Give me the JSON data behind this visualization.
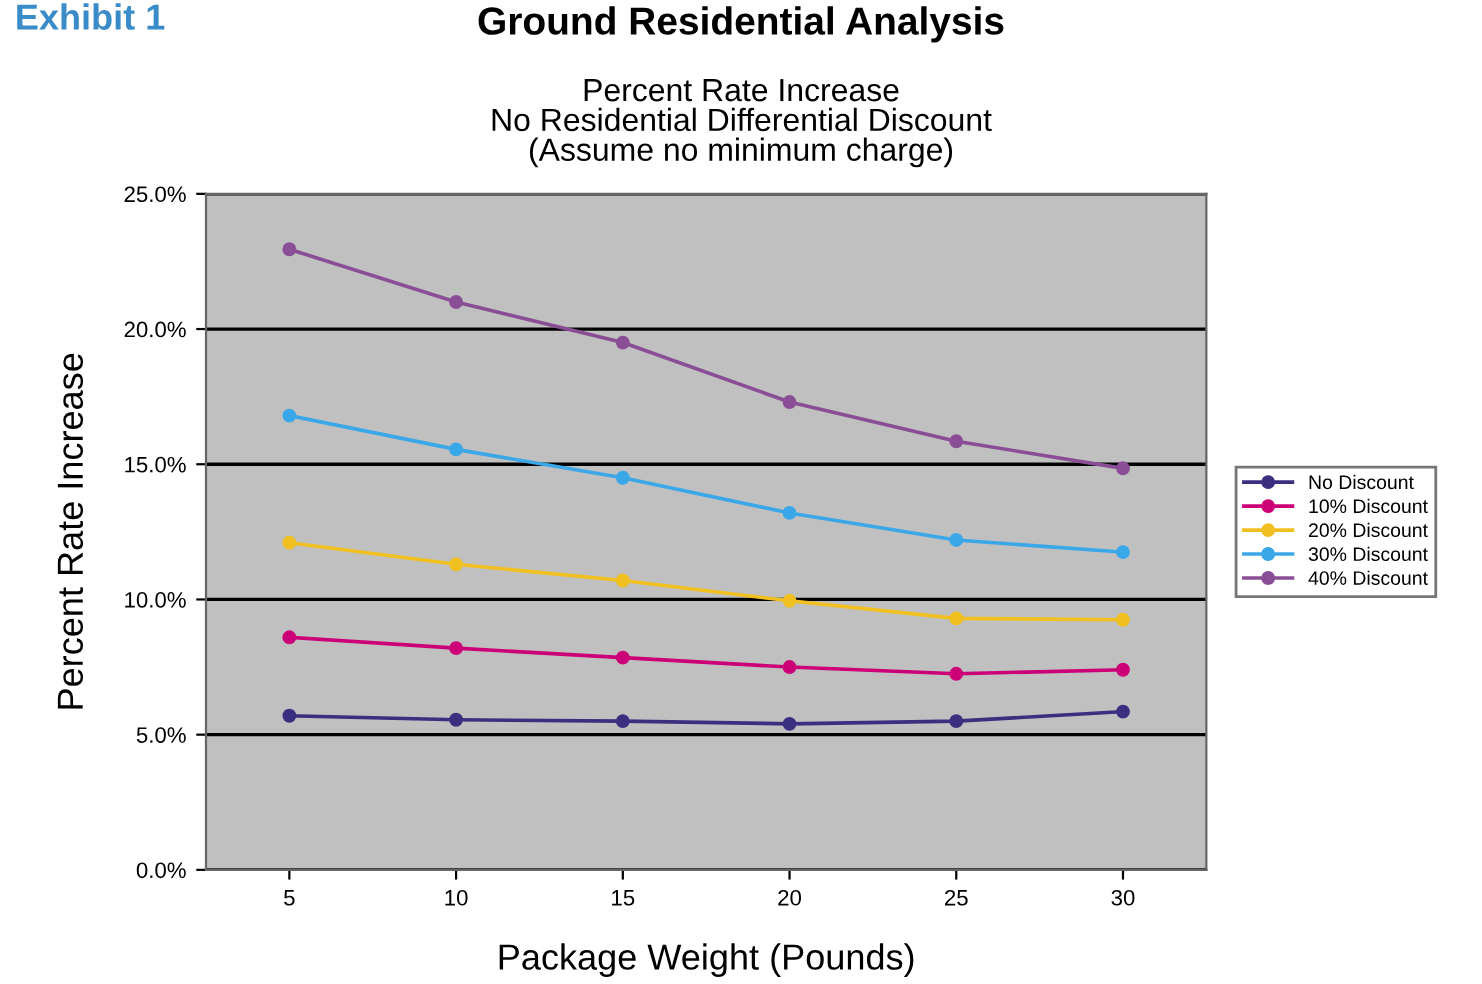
{
  "chart_data": {
    "type": "line",
    "title": "Ground Residential Analysis",
    "subtitle": "Percent Rate Increase\nNo Residential Differential Discount\n(Assume no minimum charge)",
    "xlabel": "Package Weight (Pounds)",
    "ylabel": "Percent Rate Increase",
    "annotations": [
      "Exhibit 1"
    ],
    "categories": [
      "5",
      "10",
      "15",
      "20",
      "25",
      "30"
    ],
    "series": [
      {
        "name": "No Discount",
        "color": "#3b2f80",
        "values": [
          5.7,
          5.55,
          5.5,
          5.4,
          5.5,
          5.85
        ]
      },
      {
        "name": "10% Discount",
        "color": "#cc0077",
        "values": [
          8.6,
          8.2,
          7.85,
          7.5,
          7.25,
          7.4
        ]
      },
      {
        "name": "20% Discount",
        "color": "#f0c020",
        "values": [
          12.1,
          11.3,
          10.7,
          9.95,
          9.3,
          9.25
        ]
      },
      {
        "name": "30% Discount",
        "color": "#3aa8e8",
        "values": [
          16.8,
          15.55,
          14.5,
          13.2,
          12.2,
          11.75
        ]
      },
      {
        "name": "40% Discount",
        "color": "#8a4e96",
        "values": [
          22.95,
          21.0,
          19.5,
          17.3,
          15.85,
          14.85
        ]
      }
    ],
    "ylim": [
      0,
      25
    ],
    "yticks": [
      {
        "value": 0,
        "label": "0.0%"
      },
      {
        "value": 5,
        "label": "5.0%"
      },
      {
        "value": 10,
        "label": "10.0%"
      },
      {
        "value": 15,
        "label": "15.0%"
      },
      {
        "value": 20,
        "label": "20.0%"
      },
      {
        "value": 25,
        "label": "25.0%"
      }
    ],
    "grid": "y",
    "legend": "right",
    "marker": "circle",
    "line_style": "solid"
  }
}
